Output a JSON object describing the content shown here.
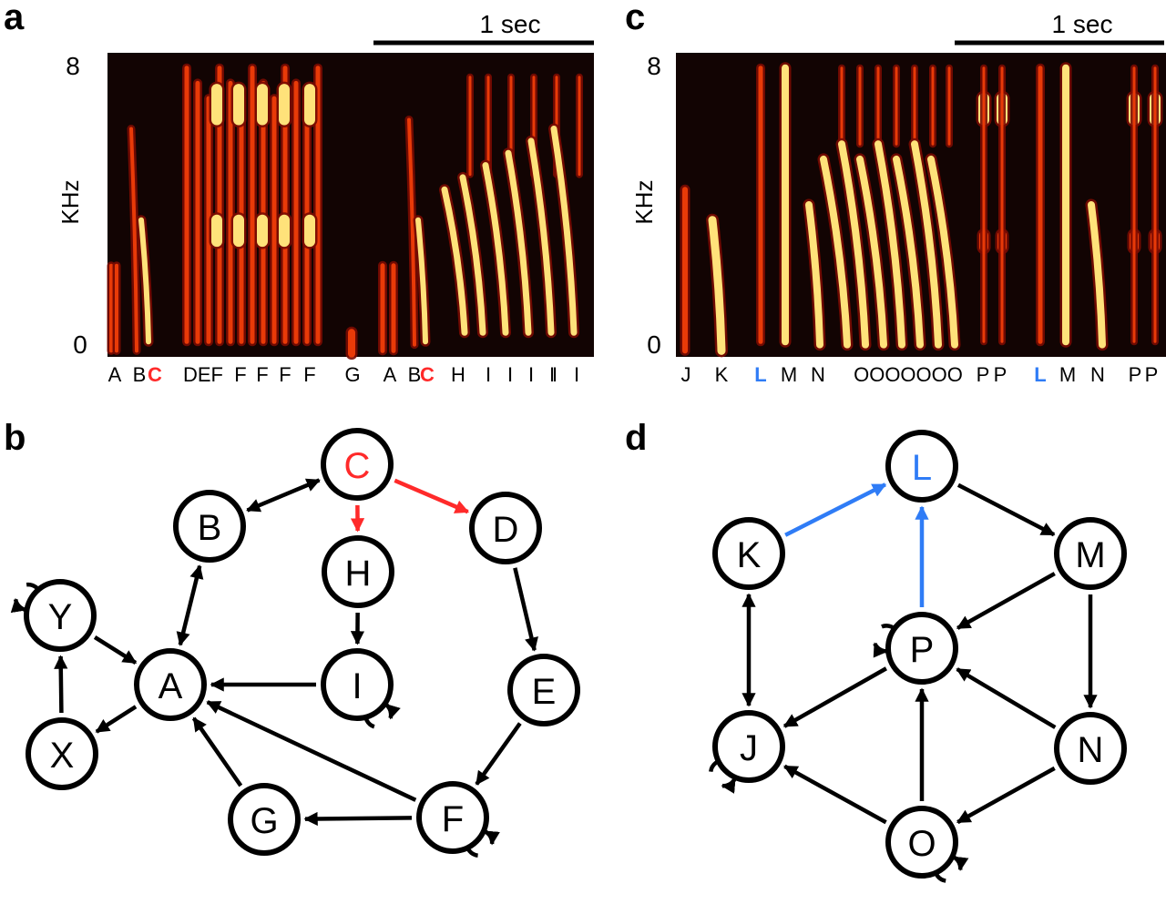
{
  "colors": {
    "black": "#000000",
    "highlight_red": "#ff2a2a",
    "highlight_blue": "#2f7cf6",
    "spec_bg": "#120403",
    "spec_low": "#7a0b02",
    "spec_mid": "#e83a08",
    "spec_high": "#ffe27a"
  },
  "panel_a": {
    "letter": "a",
    "y_top": "8",
    "y_bottom": "0",
    "y_label": "KHz",
    "scale_label": "1 sec",
    "syllables": [
      "A",
      "B",
      "C",
      "DEF",
      "F",
      "F",
      "F",
      "F",
      "G",
      "A",
      "B",
      "C",
      "H",
      "I",
      "I",
      "I",
      "I",
      "I",
      "I"
    ],
    "highlighted": [
      "C"
    ]
  },
  "panel_c": {
    "letter": "c",
    "y_top": "8",
    "y_bottom": "0",
    "y_label": "KHz",
    "scale_label": "1 sec",
    "syllables": [
      "J",
      "K",
      "L",
      "M",
      "N",
      "OOOOOOO",
      "P",
      "P",
      "L",
      "M",
      "N",
      "P",
      "P"
    ],
    "highlighted": [
      "L"
    ]
  },
  "panel_b": {
    "letter": "b",
    "nodes": [
      "C",
      "B",
      "D",
      "H",
      "Y",
      "A",
      "I",
      "E",
      "X",
      "G",
      "F"
    ],
    "highlighted_node": "C",
    "edges": [
      {
        "from": "C",
        "to": "B",
        "bidirectional": true
      },
      {
        "from": "C",
        "to": "H",
        "highlight": true
      },
      {
        "from": "C",
        "to": "D",
        "highlight": true
      },
      {
        "from": "B",
        "to": "A",
        "bidirectional": true
      },
      {
        "from": "H",
        "to": "I"
      },
      {
        "from": "I",
        "to": "A"
      },
      {
        "from": "D",
        "to": "E"
      },
      {
        "from": "E",
        "to": "F"
      },
      {
        "from": "F",
        "to": "A"
      },
      {
        "from": "F",
        "to": "G"
      },
      {
        "from": "G",
        "to": "A"
      },
      {
        "from": "Y",
        "to": "A"
      },
      {
        "from": "X",
        "to": "Y"
      },
      {
        "from": "A",
        "to": "X"
      }
    ],
    "self_loops": [
      "Y",
      "I",
      "F"
    ]
  },
  "panel_d": {
    "letter": "d",
    "nodes": [
      "L",
      "K",
      "M",
      "P",
      "J",
      "N",
      "O"
    ],
    "highlighted_node": "L",
    "edges": [
      {
        "from": "K",
        "to": "L",
        "highlight": true
      },
      {
        "from": "P",
        "to": "L",
        "highlight": true
      },
      {
        "from": "L",
        "to": "M"
      },
      {
        "from": "M",
        "to": "P"
      },
      {
        "from": "M",
        "to": "N"
      },
      {
        "from": "N",
        "to": "P"
      },
      {
        "from": "N",
        "to": "O"
      },
      {
        "from": "O",
        "to": "P"
      },
      {
        "from": "O",
        "to": "J"
      },
      {
        "from": "P",
        "to": "J"
      },
      {
        "from": "K",
        "to": "J",
        "bidirectional": true
      }
    ],
    "self_loops": [
      "P",
      "J",
      "O"
    ]
  }
}
